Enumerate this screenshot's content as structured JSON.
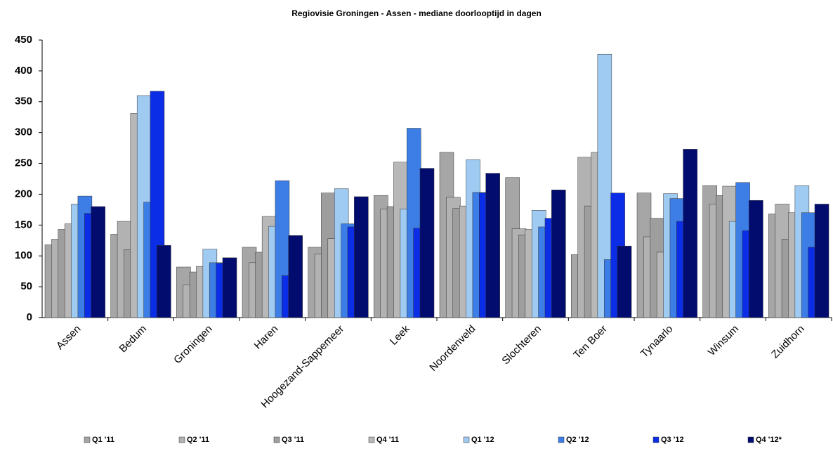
{
  "chart_data": {
    "type": "bar",
    "title": "Regiovisie Groningen - Assen - mediane doorlooptijd in dagen",
    "categories": [
      "Assen",
      "Bedum",
      "Groningen",
      "Haren",
      "Hoogezand-Sappemeer",
      "Leek",
      "Noordenveld",
      "Slochteren",
      "Ten Boer",
      "Tynaarlo",
      "Winsum",
      "Zuidhorn"
    ],
    "series": [
      {
        "name": "Q1 '11",
        "color": "#a6a6a6",
        "values": [
          118,
          135,
          82,
          114,
          114,
          198,
          268,
          227,
          102,
          202,
          214,
          168
        ]
      },
      {
        "name": "Q2 '11",
        "color": "#b2b2b2",
        "values": [
          127,
          156,
          53,
          89,
          103,
          176,
          195,
          144,
          260,
          131,
          184,
          184
        ]
      },
      {
        "name": "Q3 '11",
        "color": "#9e9e9e",
        "values": [
          143,
          110,
          74,
          106,
          202,
          180,
          177,
          134,
          181,
          161,
          198,
          127
        ]
      },
      {
        "name": "Q4 '11",
        "color": "#b8b8b8",
        "values": [
          152,
          331,
          83,
          164,
          128,
          252,
          181,
          143,
          268,
          106,
          213,
          170
        ]
      },
      {
        "name": "Q1 '12",
        "color": "#9fcbf2",
        "values": [
          184,
          360,
          111,
          148,
          209,
          176,
          256,
          174,
          427,
          201,
          156,
          214
        ]
      },
      {
        "name": "Q2 '12",
        "color": "#3d7de6",
        "values": [
          197,
          187,
          89,
          222,
          152,
          307,
          203,
          147,
          94,
          193,
          219,
          170
        ]
      },
      {
        "name": "Q3 '12",
        "color": "#0b2de6",
        "values": [
          169,
          367,
          88,
          68,
          147,
          145,
          202,
          161,
          202,
          156,
          141,
          114
        ]
      },
      {
        "name": "Q4 '12*",
        "color": "#020b6e",
        "values": [
          180,
          117,
          97,
          133,
          196,
          242,
          234,
          207,
          116,
          273,
          190,
          184
        ]
      }
    ],
    "ylim": [
      0,
      450
    ],
    "yticks": [
      0,
      50,
      100,
      150,
      200,
      250,
      300,
      350,
      400,
      450
    ]
  }
}
